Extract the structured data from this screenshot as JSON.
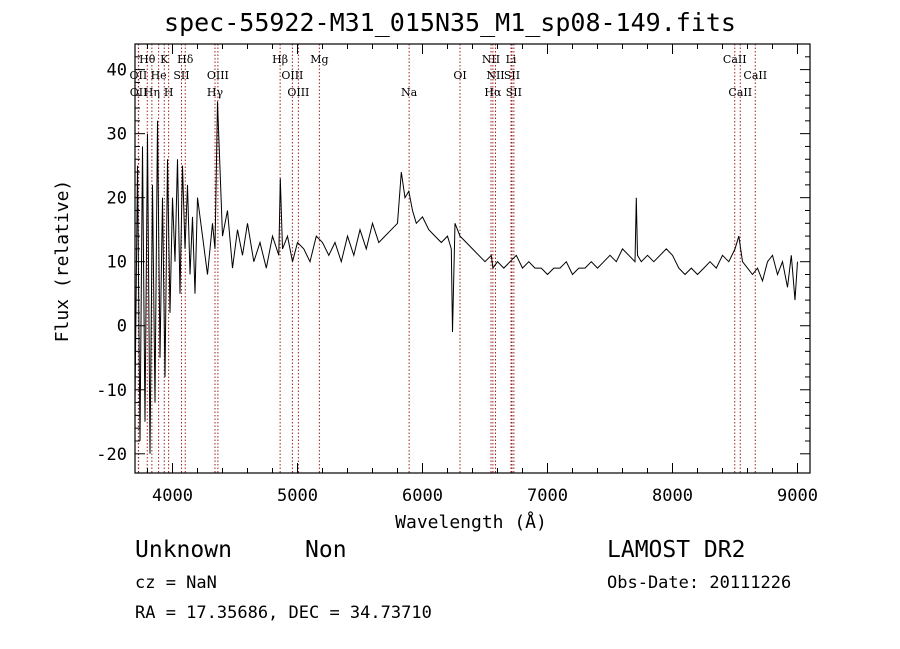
{
  "chart_data": {
    "type": "line",
    "title": "spec-55922-M31_015N35_M1_sp08-149.fits",
    "xlabel": "Wavelength (Å)",
    "ylabel": "Flux (relative)",
    "xlim": [
      3700,
      9100
    ],
    "ylim": [
      -23,
      44
    ],
    "x_ticks": [
      4000,
      5000,
      6000,
      7000,
      8000,
      9000
    ],
    "y_ticks": [
      -20,
      -10,
      0,
      10,
      20,
      30,
      40
    ],
    "grid": false,
    "line_color": "#000000",
    "series": [
      {
        "x": [
          3700,
          3720,
          3740,
          3760,
          3780,
          3800,
          3820,
          3840,
          3860,
          3880,
          3900,
          3920,
          3940,
          3960,
          3980,
          4000,
          4020,
          4040,
          4060,
          4080,
          4100,
          4120,
          4140,
          4160,
          4180,
          4200,
          4240,
          4280,
          4320,
          4340,
          4360,
          4400,
          4440,
          4480,
          4520,
          4560,
          4600,
          4650,
          4700,
          4750,
          4800,
          4850,
          4862,
          4880,
          4920,
          4960,
          5000,
          5050,
          5100,
          5150,
          5200,
          5250,
          5300,
          5350,
          5400,
          5450,
          5500,
          5550,
          5600,
          5650,
          5700,
          5750,
          5800,
          5830,
          5860,
          5890,
          5920,
          5950,
          6000,
          6050,
          6100,
          6150,
          6200,
          6230,
          6240,
          6260,
          6300,
          6350,
          6400,
          6450,
          6500,
          6550,
          6563,
          6600,
          6650,
          6700,
          6750,
          6800,
          6850,
          6900,
          6950,
          7000,
          7050,
          7100,
          7150,
          7200,
          7250,
          7300,
          7350,
          7400,
          7450,
          7500,
          7550,
          7600,
          7650,
          7700,
          7710,
          7720,
          7750,
          7800,
          7850,
          7900,
          7950,
          8000,
          8050,
          8100,
          8150,
          8200,
          8250,
          8300,
          8350,
          8400,
          8450,
          8500,
          8530,
          8560,
          8600,
          8640,
          8680,
          8720,
          8760,
          8800,
          8840,
          8880,
          8920,
          8950,
          8980,
          9000
        ],
        "y": [
          -12,
          25,
          -18,
          28,
          -15,
          30,
          -20,
          22,
          -12,
          32,
          -5,
          20,
          -8,
          26,
          2,
          20,
          10,
          26,
          5,
          25,
          12,
          22,
          8,
          17,
          5,
          20,
          14,
          8,
          16,
          12,
          35,
          14,
          18,
          9,
          15,
          11,
          16,
          10,
          13,
          9,
          14,
          11,
          23,
          12,
          14,
          10,
          13,
          12,
          10,
          14,
          13,
          11,
          13,
          10,
          14,
          11,
          15,
          12,
          16,
          13,
          14,
          15,
          16,
          24,
          20,
          21,
          18,
          16,
          17,
          15,
          14,
          13,
          14,
          12,
          -1,
          16,
          14,
          13,
          12,
          11,
          10,
          11,
          9,
          10,
          9,
          10,
          11,
          9,
          10,
          9,
          9,
          8,
          9,
          9,
          10,
          8,
          9,
          9,
          10,
          9,
          10,
          11,
          10,
          12,
          11,
          10,
          20,
          11,
          10,
          11,
          10,
          11,
          12,
          11,
          9,
          8,
          9,
          8,
          9,
          10,
          9,
          11,
          10,
          12,
          14,
          10,
          9,
          8,
          9,
          7,
          10,
          11,
          8,
          10,
          6,
          11,
          4,
          10
        ]
      }
    ],
    "lines": [
      {
        "label": "Hθ",
        "x": 3798,
        "row": 0
      },
      {
        "label": "OII",
        "x": 3727,
        "row": 1
      },
      {
        "label": "OII",
        "x": 3729,
        "row": 2
      },
      {
        "label": "K",
        "x": 3934,
        "row": 0
      },
      {
        "label": "He",
        "x": 3889,
        "row": 1
      },
      {
        "label": "Hη",
        "x": 3835,
        "row": 2
      },
      {
        "label": "Hδ",
        "x": 4102,
        "row": 0
      },
      {
        "label": "SII",
        "x": 4072,
        "row": 1
      },
      {
        "label": "H",
        "x": 3969,
        "row": 2
      },
      {
        "label": "OIII",
        "x": 4363,
        "row": 1
      },
      {
        "label": "Hγ",
        "x": 4340,
        "row": 2
      },
      {
        "label": "Hβ",
        "x": 4861,
        "row": 0
      },
      {
        "label": "OIII",
        "x": 4959,
        "row": 1
      },
      {
        "label": "OIII",
        "x": 5007,
        "row": 2
      },
      {
        "label": "Mg",
        "x": 5175,
        "row": 0
      },
      {
        "label": "Na",
        "x": 5893,
        "row": 2
      },
      {
        "label": "OI",
        "x": 6300,
        "row": 1
      },
      {
        "label": "NII",
        "x": 6548,
        "row": 0
      },
      {
        "label": "Li",
        "x": 6708,
        "row": 0
      },
      {
        "label": "NII",
        "x": 6584,
        "row": 1
      },
      {
        "label": "SII",
        "x": 6716,
        "row": 1
      },
      {
        "label": "Hα",
        "x": 6563,
        "row": 2
      },
      {
        "label": "SII",
        "x": 6731,
        "row": 2
      },
      {
        "label": "CaII",
        "x": 8498,
        "row": 0
      },
      {
        "label": "CaII",
        "x": 8662,
        "row": 1
      },
      {
        "label": "CaII",
        "x": 8542,
        "row": 2
      }
    ],
    "line_marker_color": "#a02020"
  },
  "info": {
    "obj_class": "Unknown",
    "obj_subclass": "Non",
    "survey": "LAMOST DR2",
    "cz": "cz = NaN",
    "obs_date": "Obs-Date: 20111226",
    "radec": "RA =  17.35686, DEC =  34.73710"
  }
}
